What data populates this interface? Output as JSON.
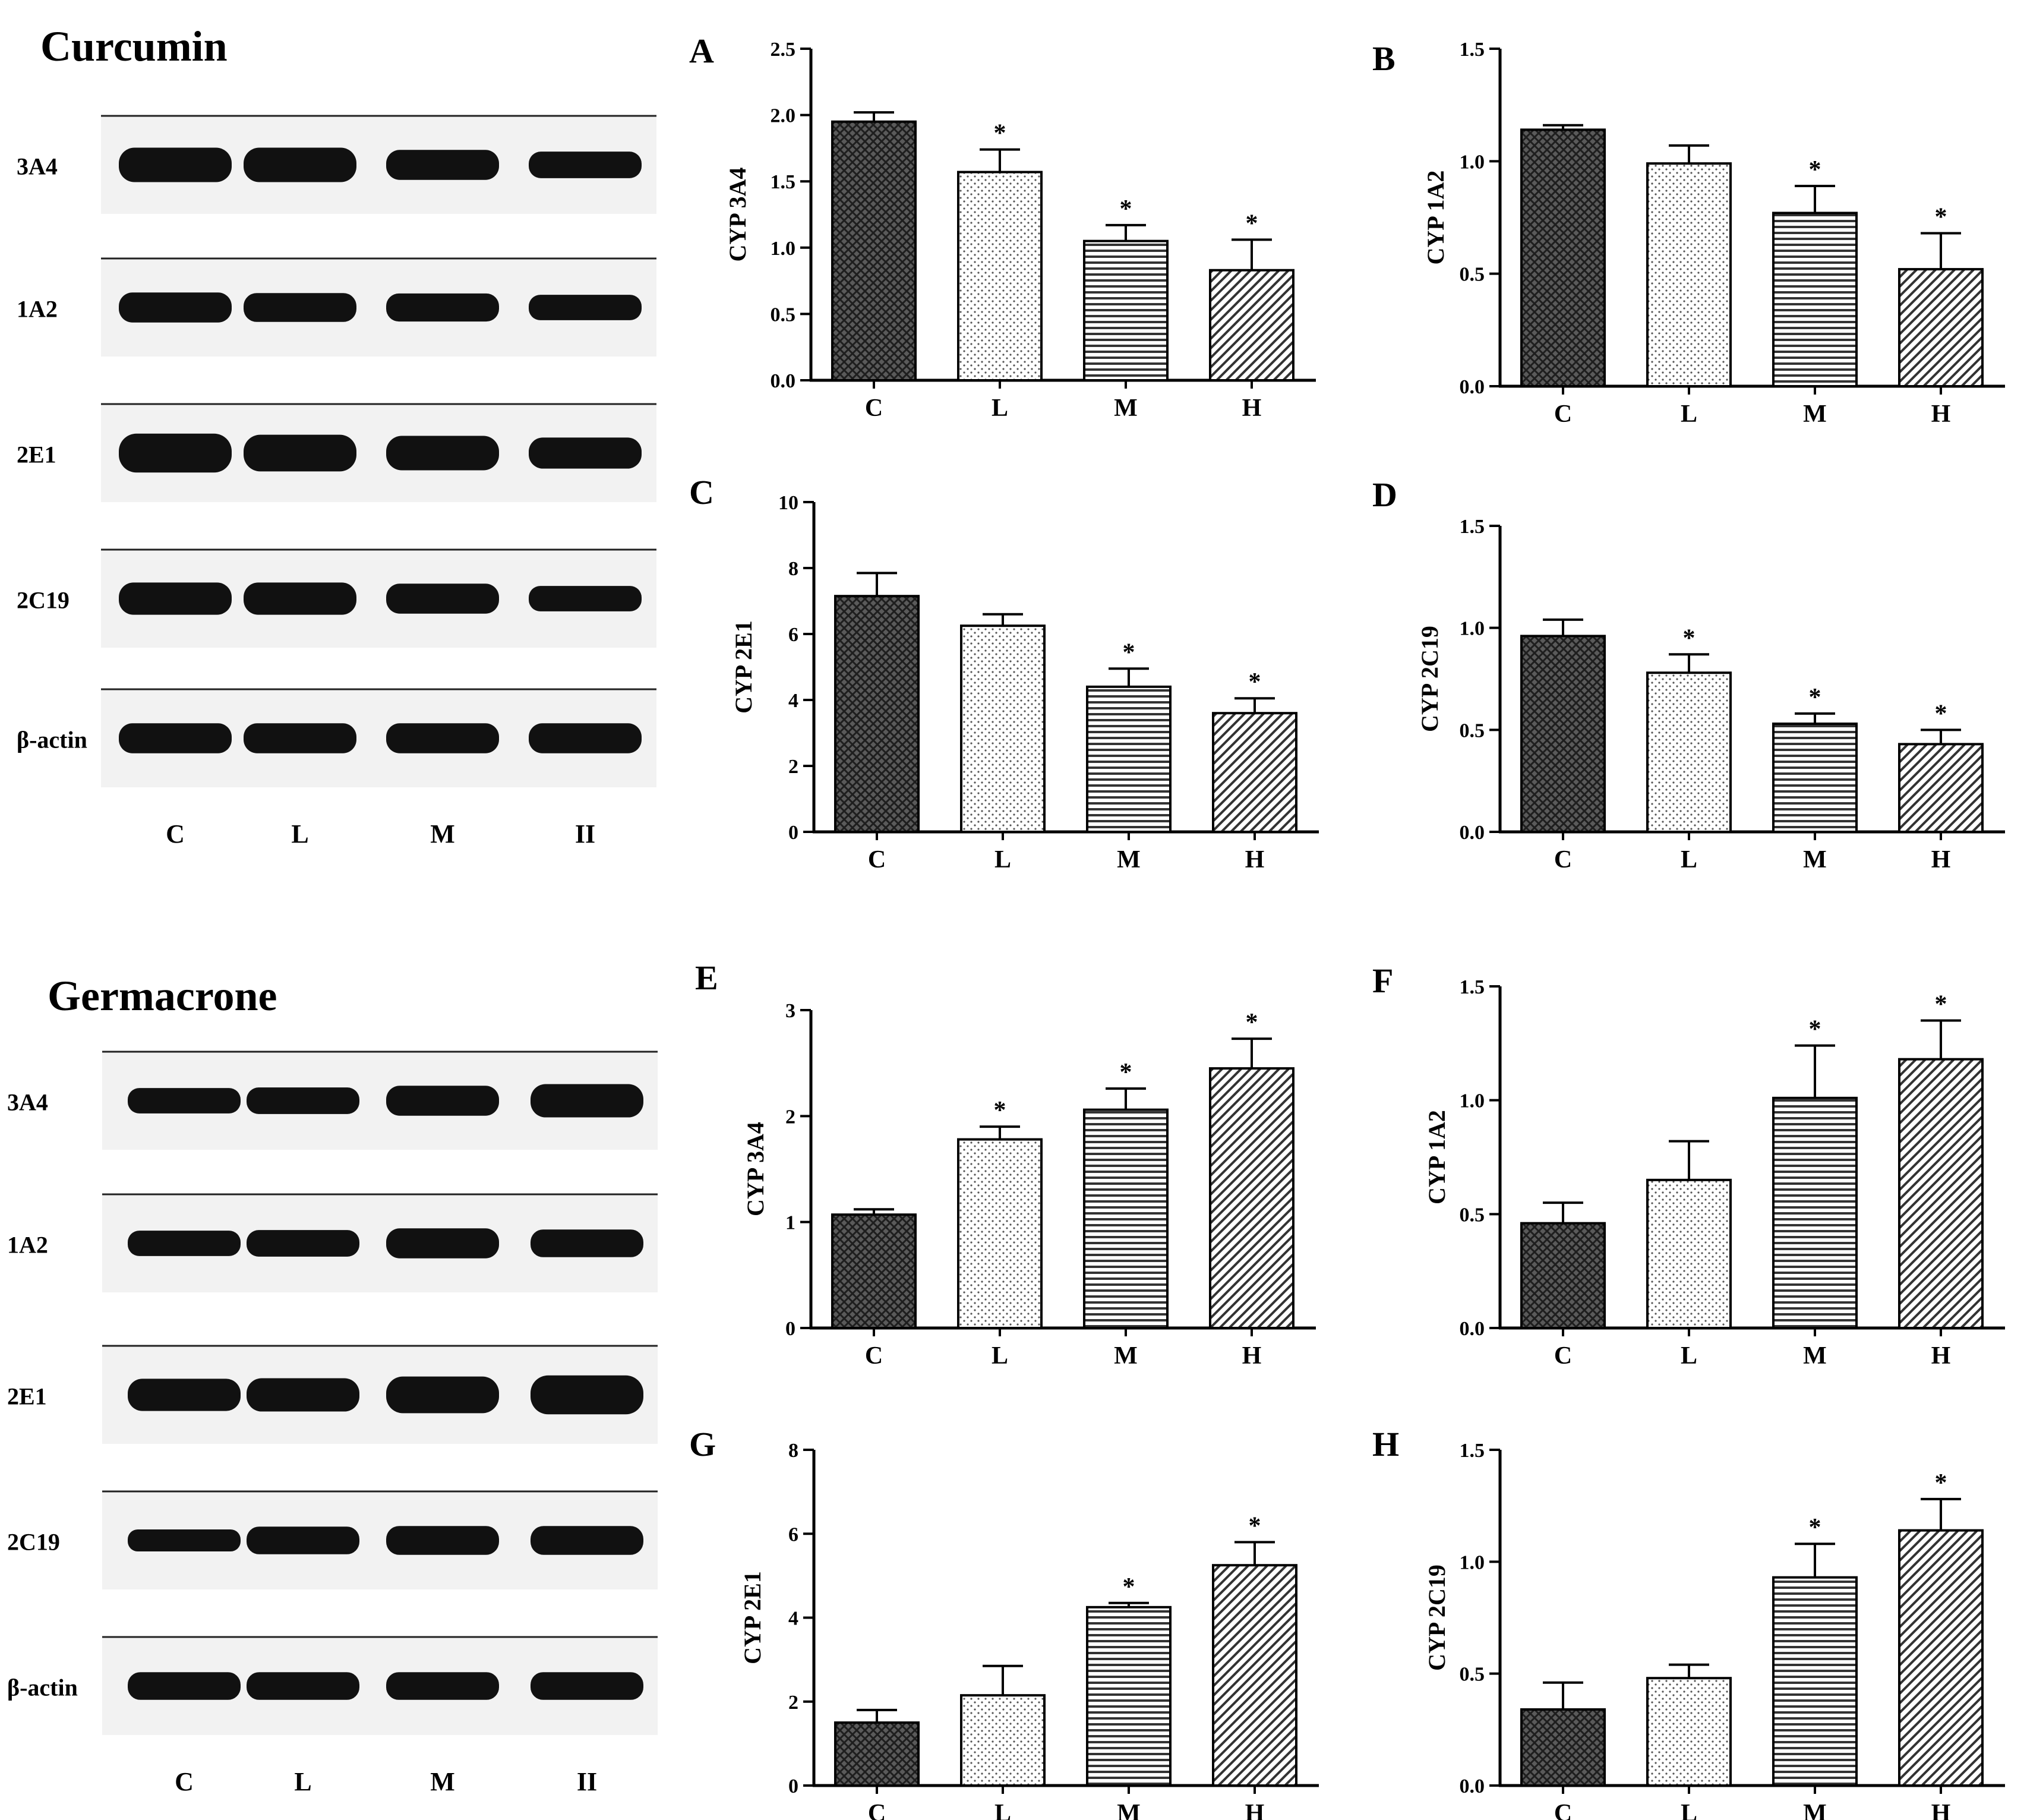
{
  "blots": [
    {
      "title": "Curcumin",
      "rows": [
        {
          "label": "3A4",
          "intensities": [
            1.0,
            1.0,
            0.8,
            0.65
          ]
        },
        {
          "label": "1A2",
          "intensities": [
            0.8,
            0.75,
            0.72,
            0.6
          ]
        },
        {
          "label": "2E1",
          "intensities": [
            1.2,
            1.1,
            1.0,
            0.85
          ]
        },
        {
          "label": "2C19",
          "intensities": [
            0.9,
            0.9,
            0.8,
            0.6
          ]
        },
        {
          "label": "β-actin",
          "intensities": [
            0.8,
            0.8,
            0.8,
            0.8
          ]
        }
      ],
      "lanes": [
        "C",
        "L",
        "M",
        "II"
      ]
    },
    {
      "title": "Germacrone",
      "rows": [
        {
          "label": "3A4",
          "intensities": [
            0.6,
            0.65,
            0.8,
            0.95
          ]
        },
        {
          "label": "1A2",
          "intensities": [
            0.6,
            0.65,
            0.8,
            0.7
          ]
        },
        {
          "label": "2E1",
          "intensities": [
            0.9,
            0.95,
            1.1,
            1.2
          ]
        },
        {
          "label": "2C19",
          "intensities": [
            0.45,
            0.7,
            0.75,
            0.75
          ]
        },
        {
          "label": "β-actin",
          "intensities": [
            0.7,
            0.7,
            0.7,
            0.7
          ]
        }
      ],
      "lanes": [
        "C",
        "L",
        "M",
        "II"
      ]
    }
  ],
  "chart_data": [
    {
      "panel": "A",
      "type": "bar",
      "categories": [
        "C",
        "L",
        "M",
        "H"
      ],
      "values": [
        1.95,
        1.57,
        1.05,
        0.83
      ],
      "errors": [
        0.07,
        0.17,
        0.12,
        0.23
      ],
      "significant": [
        false,
        true,
        true,
        true
      ],
      "ylabel": "CYP 3A4",
      "ylim": [
        0,
        2.5
      ],
      "ticks": [
        "0.0",
        "0.5",
        "1.0",
        "1.5",
        "2.0",
        "2.5"
      ]
    },
    {
      "panel": "B",
      "type": "bar",
      "categories": [
        "C",
        "L",
        "M",
        "H"
      ],
      "values": [
        1.14,
        0.99,
        0.77,
        0.52
      ],
      "errors": [
        0.02,
        0.08,
        0.12,
        0.16
      ],
      "significant": [
        false,
        false,
        true,
        true
      ],
      "ylabel": "CYP 1A2",
      "ylim": [
        0,
        1.5
      ],
      "ticks": [
        "0.0",
        "0.5",
        "1.0",
        "1.5"
      ]
    },
    {
      "panel": "C",
      "type": "bar",
      "categories": [
        "C",
        "L",
        "M",
        "H"
      ],
      "values": [
        7.15,
        6.25,
        4.4,
        3.6
      ],
      "errors": [
        0.7,
        0.35,
        0.55,
        0.45
      ],
      "significant": [
        false,
        false,
        true,
        true
      ],
      "ylabel": "CYP 2E1",
      "ylim": [
        0,
        10
      ],
      "ticks": [
        "0",
        "2",
        "4",
        "6",
        "8",
        "10"
      ]
    },
    {
      "panel": "D",
      "type": "bar",
      "categories": [
        "C",
        "L",
        "M",
        "H"
      ],
      "values": [
        0.96,
        0.78,
        0.53,
        0.43
      ],
      "errors": [
        0.08,
        0.09,
        0.05,
        0.07
      ],
      "significant": [
        false,
        true,
        true,
        true
      ],
      "ylabel": "CYP 2C19",
      "ylim": [
        0,
        1.5
      ],
      "ticks": [
        "0.0",
        "0.5",
        "1.0",
        "1.5"
      ]
    },
    {
      "panel": "E",
      "type": "bar",
      "categories": [
        "C",
        "L",
        "M",
        "H"
      ],
      "values": [
        1.07,
        1.78,
        2.06,
        2.45
      ],
      "errors": [
        0.05,
        0.12,
        0.2,
        0.28
      ],
      "significant": [
        false,
        true,
        true,
        true
      ],
      "ylabel": "CYP 3A4",
      "ylim": [
        0,
        3
      ],
      "ticks": [
        "0",
        "1",
        "2",
        "3"
      ]
    },
    {
      "panel": "F",
      "type": "bar",
      "categories": [
        "C",
        "L",
        "M",
        "H"
      ],
      "values": [
        0.46,
        0.65,
        1.01,
        1.18
      ],
      "errors": [
        0.09,
        0.17,
        0.23,
        0.17
      ],
      "significant": [
        false,
        false,
        true,
        true
      ],
      "ylabel": "CYP 1A2",
      "ylim": [
        0,
        1.5
      ],
      "ticks": [
        "0.0",
        "0.5",
        "1.0",
        "1.5"
      ]
    },
    {
      "panel": "G",
      "type": "bar",
      "categories": [
        "C",
        "L",
        "M",
        "H"
      ],
      "values": [
        1.5,
        2.15,
        4.25,
        5.25
      ],
      "errors": [
        0.3,
        0.7,
        0.1,
        0.55
      ],
      "significant": [
        false,
        false,
        true,
        true
      ],
      "ylabel": "CYP 2E1",
      "ylim": [
        0,
        8
      ],
      "ticks": [
        "0",
        "2",
        "4",
        "6",
        "8"
      ]
    },
    {
      "panel": "H",
      "type": "bar",
      "categories": [
        "C",
        "L",
        "M",
        "H"
      ],
      "values": [
        0.34,
        0.48,
        0.93,
        1.14
      ],
      "errors": [
        0.12,
        0.06,
        0.15,
        0.14
      ],
      "significant": [
        false,
        false,
        true,
        true
      ],
      "ylabel": "CYP 2C19",
      "ylim": [
        0,
        1.5
      ],
      "ticks": [
        "0.0",
        "0.5",
        "1.0",
        "1.5"
      ]
    }
  ]
}
